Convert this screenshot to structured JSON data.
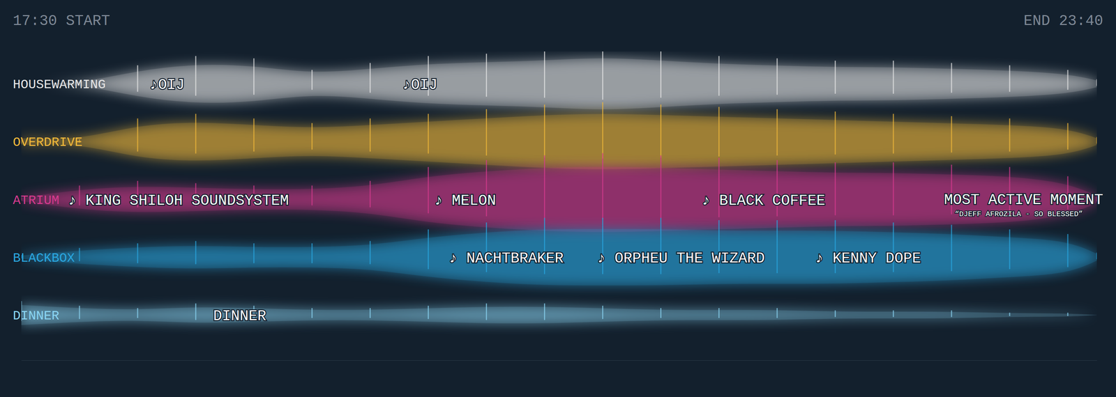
{
  "chart_data": {
    "type": "flow",
    "start_label": "17:30 START",
    "end_label": "END 23:40",
    "xlim": [
      0,
      370
    ],
    "tick_labels": false,
    "x": [
      0,
      20,
      40,
      60,
      80,
      100,
      120,
      140,
      160,
      180,
      200,
      220,
      240,
      260,
      280,
      300,
      320,
      340,
      360,
      370
    ],
    "series": [
      {
        "name": "HOUSEWARMING",
        "color": "#e6e6e6",
        "values": [
          0,
          0,
          40,
          60,
          55,
          30,
          45,
          60,
          65,
          70,
          80,
          70,
          60,
          55,
          50,
          50,
          45,
          40,
          30,
          10
        ]
      },
      {
        "name": "OVERDRIVE",
        "color": "#f0b83a",
        "values": [
          10,
          5,
          50,
          60,
          50,
          40,
          50,
          60,
          70,
          80,
          85,
          80,
          75,
          70,
          65,
          60,
          55,
          50,
          40,
          10
        ]
      },
      {
        "name": "ATRIUM",
        "color": "#d63a8e",
        "values": [
          5,
          30,
          40,
          35,
          30,
          30,
          40,
          70,
          85,
          95,
          100,
          95,
          90,
          85,
          80,
          80,
          75,
          70,
          50,
          10
        ]
      },
      {
        "name": "BLACKBOX",
        "color": "#2aa6df",
        "values": [
          5,
          20,
          30,
          35,
          30,
          30,
          35,
          60,
          75,
          85,
          85,
          85,
          80,
          80,
          80,
          75,
          70,
          60,
          50,
          10
        ]
      },
      {
        "name": "DINNER",
        "color": "#8ad4f2",
        "values": [
          30,
          20,
          15,
          25,
          20,
          15,
          15,
          20,
          25,
          25,
          20,
          15,
          15,
          15,
          10,
          10,
          10,
          5,
          5,
          0
        ]
      }
    ],
    "annotations": [
      {
        "text": "♪OIJ",
        "x": 44,
        "room": "HOUSEWARMING"
      },
      {
        "text": "♪OIJ",
        "x": 131,
        "room": "HOUSEWARMING"
      },
      {
        "text": "♪ KING SHILOH SOUNDSYSTEM",
        "x": 16,
        "room": "ATRIUM"
      },
      {
        "text": "♪ MELON",
        "x": 142,
        "room": "ATRIUM"
      },
      {
        "text": "♪ BLACK COFFEE",
        "x": 234,
        "room": "ATRIUM"
      },
      {
        "text": "♪ NACHTBRAKER",
        "x": 147,
        "room": "BLACKBOX"
      },
      {
        "text": "♪ ORPHEU THE WIZARD",
        "x": 198,
        "room": "BLACKBOX"
      },
      {
        "text": "♪ KENNY DOPE",
        "x": 273,
        "room": "BLACKBOX"
      },
      {
        "text": "DINNER",
        "x": 66,
        "room": "DINNER"
      }
    ],
    "highlight": {
      "title": "MOST ACTIVE MOMENT",
      "subtitle": "“DJEFF AFROZILA - SO BLESSED”",
      "room": "ATRIUM"
    }
  }
}
